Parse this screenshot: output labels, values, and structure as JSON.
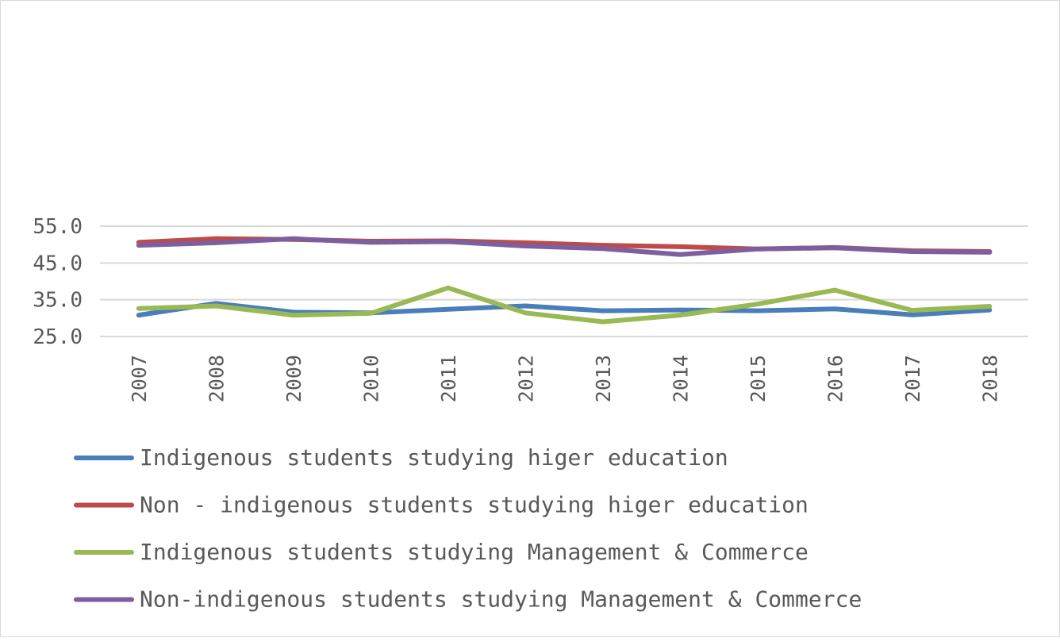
{
  "chart_data": {
    "type": "line",
    "title": "",
    "xlabel": "",
    "ylabel": "",
    "x": [
      "2007",
      "2008",
      "2009",
      "2010",
      "2011",
      "2012",
      "2013",
      "2014",
      "2015",
      "2016",
      "2017",
      "2018"
    ],
    "ylim": [
      25,
      55
    ],
    "yticks": [
      "55.0",
      "45.0",
      "35.0",
      "25.0"
    ],
    "grid": true,
    "legend_position": "bottom",
    "series": [
      {
        "name": "Indigenous students studying higer education",
        "color": "#4A7EBB",
        "values": [
          30.8,
          34.0,
          31.6,
          31.4,
          32.4,
          33.3,
          32.0,
          32.2,
          32.0,
          32.5,
          30.9,
          32.2
        ]
      },
      {
        "name": "Non - indigenous students studying higer education",
        "color": "#BE4B48",
        "values": [
          50.6,
          51.6,
          51.4,
          50.9,
          51.0,
          50.5,
          49.8,
          49.4,
          48.8,
          49.2,
          48.3,
          48.1
        ]
      },
      {
        "name": "Indigenous students studying Management & Commerce",
        "color": "#98B954",
        "values": [
          32.6,
          33.3,
          30.8,
          31.3,
          38.2,
          31.4,
          29.0,
          30.8,
          33.8,
          37.6,
          32.1,
          33.2
        ]
      },
      {
        "name": "Non-indigenous students studying Management & Commerce",
        "color": "#7D5FA0",
        "values": [
          49.8,
          50.5,
          51.6,
          50.6,
          50.8,
          49.6,
          48.9,
          47.3,
          48.8,
          49.1,
          48.1,
          47.9
        ]
      }
    ]
  }
}
